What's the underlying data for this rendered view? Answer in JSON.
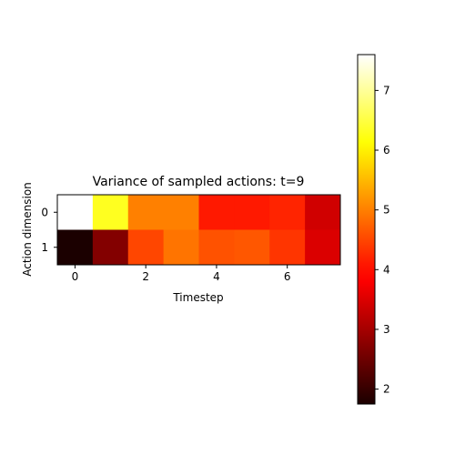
{
  "chart_data": {
    "type": "heatmap",
    "title": "Variance of sampled actions: t=9",
    "xlabel": "Timestep",
    "ylabel": "Action dimension",
    "x_categories": [
      0,
      1,
      2,
      3,
      4,
      5,
      6,
      7
    ],
    "x_ticks": [
      "0",
      "2",
      "4",
      "6"
    ],
    "y_categories": [
      0,
      1
    ],
    "y_ticks": [
      "0",
      "1"
    ],
    "values": [
      [
        7.6,
        6.3,
        5.0,
        5.0,
        4.1,
        4.1,
        4.2,
        3.4
      ],
      [
        1.75,
        2.7,
        4.5,
        4.9,
        4.6,
        4.65,
        4.35,
        3.5
      ]
    ],
    "colormap": "hot",
    "colorbar": {
      "range": [
        1.75,
        7.6
      ],
      "ticks": [
        "2",
        "3",
        "4",
        "5",
        "6",
        "7"
      ]
    },
    "grid": false
  }
}
